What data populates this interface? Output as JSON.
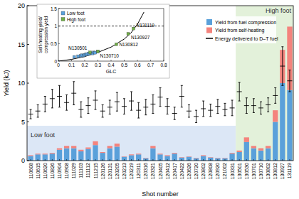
{
  "chart_data": [
    {
      "type": "bar",
      "stacked": true,
      "grid": false,
      "legend": "upper right",
      "y_label": "Yield (kJ)",
      "x_label": "Shot number",
      "ylim": [
        0,
        20
      ],
      "yticks": [
        0,
        5,
        10,
        15,
        20
      ],
      "categories": [
        "110608",
        "110615",
        "110620",
        "110826",
        "110904",
        "110908",
        "111029",
        "111103",
        "111112",
        "111215",
        "120126",
        "120131",
        "120205",
        "120213",
        "120219",
        "120311",
        "120316",
        "120321",
        "120405",
        "120412",
        "120417",
        "120422",
        "120626",
        "120720",
        "120802",
        "120808",
        "120920",
        "121002",
        "130331",
        "130501",
        "130530",
        "130701",
        "130710",
        "130802",
        "130812",
        "130927",
        "131119"
      ],
      "series": [
        {
          "name": "Yield from fuel compression",
          "color": "#5aa0da",
          "values": [
            0.6,
            0.8,
            0.8,
            0.9,
            1.4,
            1.6,
            1.6,
            1.2,
            1.5,
            2.0,
            1.0,
            1.6,
            1.8,
            0.5,
            0.7,
            0.8,
            0.3,
            1.6,
            0.8,
            0.6,
            0.9,
            0.4,
            0.5,
            0.3,
            0.6,
            0.4,
            0.3,
            0.3,
            0.9,
            1.1,
            2.4,
            1.6,
            1.3,
            1.6,
            5.0,
            10.0,
            9.1
          ]
        },
        {
          "name": "Yield from self-heating",
          "color": "#f4837d",
          "values": [
            0.1,
            0.1,
            0.1,
            0.1,
            0.2,
            0.3,
            0.3,
            0.2,
            0.2,
            0.5,
            0.1,
            0.3,
            0.4,
            0.05,
            0.1,
            0.1,
            0.05,
            0.3,
            0.1,
            0.1,
            0.1,
            0.05,
            0.05,
            0.05,
            0.1,
            0.05,
            0.05,
            0.05,
            0.1,
            0.2,
            0.6,
            0.3,
            0.3,
            0.3,
            1.5,
            4.3,
            8.2
          ]
        },
        {
          "name": "Energy delivered to D–T fuel",
          "type": "errorbar",
          "color": "#000000",
          "values": [
            6.0,
            6.4,
            7.3,
            8.0,
            8.3,
            7.5,
            8.7,
            6.6,
            7.1,
            7.8,
            6.4,
            6.9,
            7.6,
            7.0,
            7.7,
            6.5,
            6.9,
            7.3,
            8.2,
            7.0,
            6.1,
            8.3,
            6.4,
            5.7,
            6.7,
            6.5,
            7.0,
            6.6,
            6.8,
            8.9,
            7.1,
            7.1,
            6.8,
            7.2,
            8.4,
            12.2,
            10.3
          ],
          "errors": [
            0.6,
            0.8,
            1.0,
            1.2,
            1.4,
            1.0,
            1.5,
            1.0,
            1.0,
            1.2,
            0.8,
            0.9,
            1.2,
            1.0,
            1.2,
            1.0,
            1.0,
            1.2,
            1.2,
            1.0,
            0.8,
            1.4,
            0.8,
            0.8,
            1.0,
            0.8,
            0.9,
            0.8,
            1.0,
            1.2,
            1.0,
            0.9,
            0.8,
            0.9,
            1.0,
            2.5,
            1.4
          ]
        }
      ],
      "regions": [
        {
          "label": "Low foot",
          "start": "110608",
          "end": "130331",
          "ymax": 4.5,
          "color": "#dce7f6"
        },
        {
          "label": "High foot",
          "start": "130501",
          "end": "131119",
          "ymax": 20,
          "color": "#e3f1da"
        }
      ]
    },
    {
      "type": "scatter",
      "legend": "upper left",
      "grid": false,
      "x_label": "GLC",
      "y_label": [
        "Self-heating yield/",
        "compression yield"
      ],
      "xlim": [
        0,
        0.8
      ],
      "xticks": [
        0,
        0.1,
        0.2,
        0.3,
        0.4,
        0.5,
        0.6,
        0.7,
        0.8
      ],
      "ylim": [
        0,
        1.5
      ],
      "yticks": [
        0,
        0.5,
        1,
        1.5
      ],
      "series": [
        {
          "name": "Low foot",
          "color": "#5aa0da",
          "marker": "square",
          "x": [
            0.12,
            0.15,
            0.17,
            0.18,
            0.19,
            0.2,
            0.21,
            0.22,
            0.23,
            0.25,
            0.26,
            0.27,
            0.28,
            0.3
          ],
          "values": [
            0.12,
            0.14,
            0.15,
            0.17,
            0.16,
            0.18,
            0.2,
            0.19,
            0.22,
            0.23,
            0.22,
            0.25,
            0.24,
            0.27
          ]
        },
        {
          "name": "High foot",
          "color": "#70ad47",
          "marker": "square",
          "x": [
            0.24,
            0.3,
            0.44,
            0.53,
            0.57
          ],
          "values": [
            0.25,
            0.28,
            0.48,
            0.78,
            0.93
          ],
          "point_labels": [
            "N130501",
            "N130710",
            "N130812",
            "N130927",
            "N131119"
          ]
        }
      ],
      "curve": {
        "color": "#000000",
        "x": [
          0,
          0.1,
          0.2,
          0.3,
          0.4,
          0.5,
          0.55,
          0.6,
          0.65
        ],
        "y": [
          0,
          0.05,
          0.13,
          0.25,
          0.4,
          0.63,
          0.8,
          1.05,
          1.4
        ]
      },
      "reference_lines": [
        {
          "y": 1,
          "line_style": "dashed",
          "color": "#000000"
        }
      ]
    }
  ]
}
